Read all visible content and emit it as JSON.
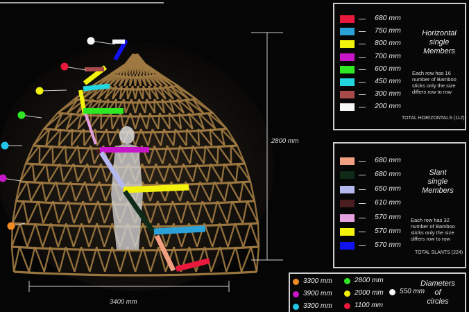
{
  "horizontal_panel": {
    "title": "Horizontal\nsingle\nMembers",
    "note": "Each row has 16\nnumber of Bamboo\nsticks only the size\ndiffers row to row",
    "total": "TOTAL HORIZONTALS  (112)",
    "members": [
      {
        "length": "680 mm",
        "color": "#e8193c"
      },
      {
        "length": "750 mm",
        "color": "#2aa2d8"
      },
      {
        "length": "800 mm",
        "color": "#f2f20c"
      },
      {
        "length": "700 mm",
        "color": "#c616c8"
      },
      {
        "length": "600 mm",
        "color": "#2ee823"
      },
      {
        "length": "450 mm",
        "color": "#22d6df"
      },
      {
        "length": "300 mm",
        "color": "#a84a4a"
      },
      {
        "length": "200 mm",
        "color": "#f6f6f6"
      }
    ]
  },
  "slant_panel": {
    "title": "Slant\nsingle\nMembers",
    "note": "Each row has 32\nnumber of Bamboo\nsticks only the size\ndiffers row to row",
    "total": "TOTAL SLANTS  (224)",
    "members": [
      {
        "length": "680 mm",
        "color": "#f0a080"
      },
      {
        "length": "680 mm",
        "color": "#0f2a17"
      },
      {
        "length": "650 mm",
        "color": "#b4b8ef"
      },
      {
        "length": "610 mm",
        "color": "#4a1d20"
      },
      {
        "length": "570 mm",
        "color": "#e6a2e0"
      },
      {
        "length": "570 mm",
        "color": "#f3f30c"
      },
      {
        "length": "570 mm",
        "color": "#1212ee"
      }
    ]
  },
  "diameters_panel": {
    "title": "Diameters\nof\ncircles",
    "items": [
      {
        "label": "3300 mm",
        "color": "#f08a24"
      },
      {
        "label": "2800 mm",
        "color": "#2ee823"
      },
      {
        "label": "550 mm",
        "color": "#f6f6f6"
      },
      {
        "label": "3900 mm",
        "color": "#c616c8"
      },
      {
        "label": "2000 mm",
        "color": "#f2f20c"
      },
      {
        "label": "3300 mm",
        "color": "#22c4e8"
      },
      {
        "label": "1100 mm",
        "color": "#e8193c"
      }
    ]
  },
  "dimensions": {
    "height": "2800 mm",
    "width": "3400 mm"
  },
  "dome_markers": [
    {
      "color": "#f6f6f6"
    },
    {
      "color": "#e8193c"
    },
    {
      "color": "#f2f20c"
    },
    {
      "color": "#2ee823"
    },
    {
      "color": "#22c4e8"
    },
    {
      "color": "#c616c8"
    },
    {
      "color": "#f08a24"
    }
  ],
  "highlighted_members": [
    {
      "color": "#1212ee"
    },
    {
      "color": "#f6f6f6"
    },
    {
      "color": "#f2f20c"
    },
    {
      "color": "#a84a4a"
    },
    {
      "color": "#22d6df"
    },
    {
      "color": "#f3f30c"
    },
    {
      "color": "#e6a2e0"
    },
    {
      "color": "#2ee823"
    },
    {
      "color": "#4a1d20"
    },
    {
      "color": "#c616c8"
    },
    {
      "color": "#b4b8ef"
    },
    {
      "color": "#f2f20c"
    },
    {
      "color": "#0f2a17"
    },
    {
      "color": "#2aa2d8"
    },
    {
      "color": "#f0a080"
    },
    {
      "color": "#e8193c"
    }
  ]
}
